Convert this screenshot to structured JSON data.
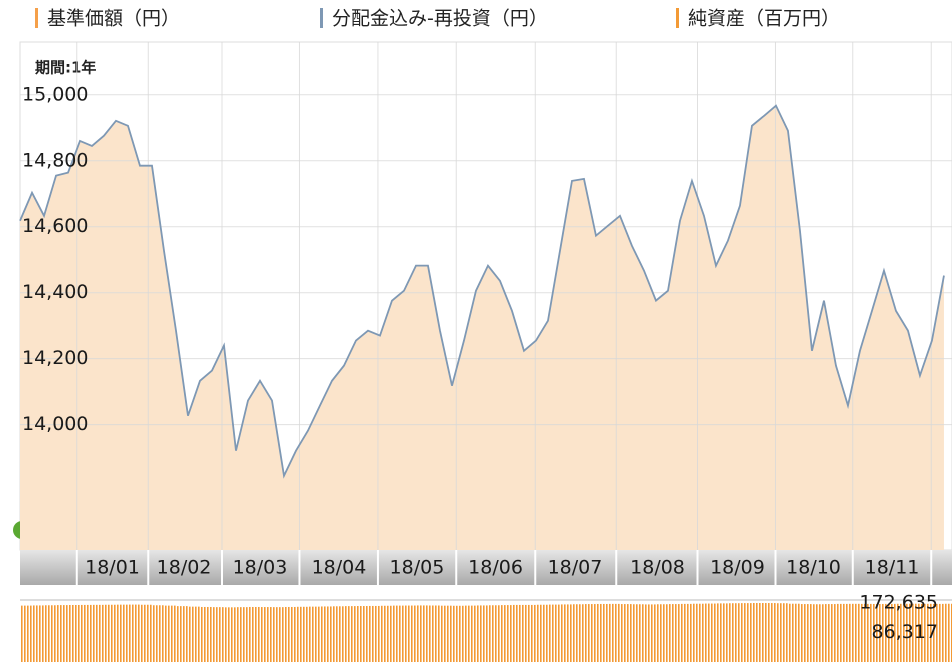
{
  "chart_data": [
    {
      "type": "area",
      "period_label": "期間:1年",
      "xlim": [
        0,
        77.67
      ],
      "xticks": [
        {
          "value": 7.71,
          "label": "18/01"
        },
        {
          "value": 13.67,
          "label": "18/02"
        },
        {
          "value": 20,
          "label": "18/03"
        },
        {
          "value": 26.58,
          "label": "18/04"
        },
        {
          "value": 33.08,
          "label": "18/05"
        },
        {
          "value": 39.63,
          "label": "18/06"
        },
        {
          "value": 46.25,
          "label": "18/07"
        },
        {
          "value": 53.13,
          "label": "18/08"
        },
        {
          "value": 59.79,
          "label": "18/09"
        },
        {
          "value": 66.13,
          "label": "18/10"
        },
        {
          "value": 72.67,
          "label": "18/11"
        }
      ],
      "ylim": [
        13620,
        15160
      ],
      "yticks": [
        {
          "value": 14000,
          "label": "14,000"
        },
        {
          "value": 14200,
          "label": "14,200"
        },
        {
          "value": 14400,
          "label": "14,400"
        },
        {
          "value": 14600,
          "label": "14,600"
        },
        {
          "value": 14800,
          "label": "14,800"
        },
        {
          "value": 15000,
          "label": "15,000"
        }
      ],
      "grid": true,
      "series": [
        {
          "name": "基準価額（円）",
          "color": "#f5a04a",
          "values": [
            14618,
            14703,
            14633,
            14755,
            14764,
            14860,
            14845,
            14876,
            14921,
            14906,
            14785,
            14785,
            14527,
            14285,
            14027,
            14133,
            14164,
            14240,
            13921,
            14073,
            14133,
            14073,
            13845,
            13921,
            13982,
            14058,
            14133,
            14179,
            14255,
            14285,
            14270,
            14376,
            14406,
            14482,
            14482,
            14285,
            14118,
            14255,
            14406,
            14482,
            14436,
            14345,
            14224,
            14255,
            14315,
            14527,
            14739,
            14745,
            14573,
            14603,
            14633,
            14542,
            14467,
            14376,
            14406,
            14618,
            14739,
            14633,
            14482,
            14558,
            14664,
            14906,
            14936,
            14967,
            14891,
            14588,
            14224,
            14376,
            14179,
            14058,
            14224,
            14345,
            14467,
            14345,
            14285,
            14149,
            14255,
            14452
          ]
        },
        {
          "name": "分配金込み-再投資（円）",
          "color": "#7e98b4",
          "values": [
            14618,
            14703,
            14633,
            14755,
            14764,
            14860,
            14845,
            14876,
            14921,
            14906,
            14785,
            14785,
            14527,
            14285,
            14027,
            14133,
            14164,
            14240,
            13921,
            14073,
            14133,
            14073,
            13845,
            13921,
            13982,
            14058,
            14133,
            14179,
            14255,
            14285,
            14270,
            14376,
            14406,
            14482,
            14482,
            14285,
            14118,
            14255,
            14406,
            14482,
            14436,
            14345,
            14224,
            14255,
            14315,
            14527,
            14739,
            14745,
            14573,
            14603,
            14633,
            14542,
            14467,
            14376,
            14406,
            14618,
            14739,
            14633,
            14482,
            14558,
            14664,
            14906,
            14936,
            14967,
            14891,
            14588,
            14224,
            14376,
            14179,
            14058,
            14224,
            14345,
            14467,
            14345,
            14285,
            14149,
            14255,
            14452
          ]
        }
      ]
    },
    {
      "type": "bar",
      "ylim": [
        0,
        181400
      ],
      "yticks": [
        {
          "value": 86317,
          "label": "86,317"
        },
        {
          "value": 172635,
          "label": "172,635"
        }
      ],
      "series": [
        {
          "name": "純資産（百万円）",
          "color": "#f39a35",
          "values": [
            165000,
            165500,
            166000,
            166500,
            166800,
            167000,
            167200,
            167500,
            167800,
            168000,
            167500,
            166000,
            165000,
            163500,
            162000,
            161000,
            160500,
            160000,
            160500,
            161000,
            160800,
            160500,
            161000,
            161500,
            162000,
            162500,
            163000,
            163500,
            163800,
            164000,
            164500,
            165000,
            165200,
            165500,
            165300,
            164800,
            164500,
            165000,
            165500,
            166000,
            166500,
            167000,
            167000,
            167500,
            168000,
            168500,
            169000,
            169500,
            169800,
            170000,
            169500,
            169000,
            168500,
            169000,
            169500,
            170000,
            170500,
            171000,
            171500,
            172000,
            172300,
            172635,
            172500,
            172000,
            170500,
            169500,
            169000,
            169500,
            170000,
            170200,
            170000,
            169800,
            170000,
            170300,
            170500,
            170200,
            170000,
            170400
          ]
        }
      ]
    }
  ]
}
